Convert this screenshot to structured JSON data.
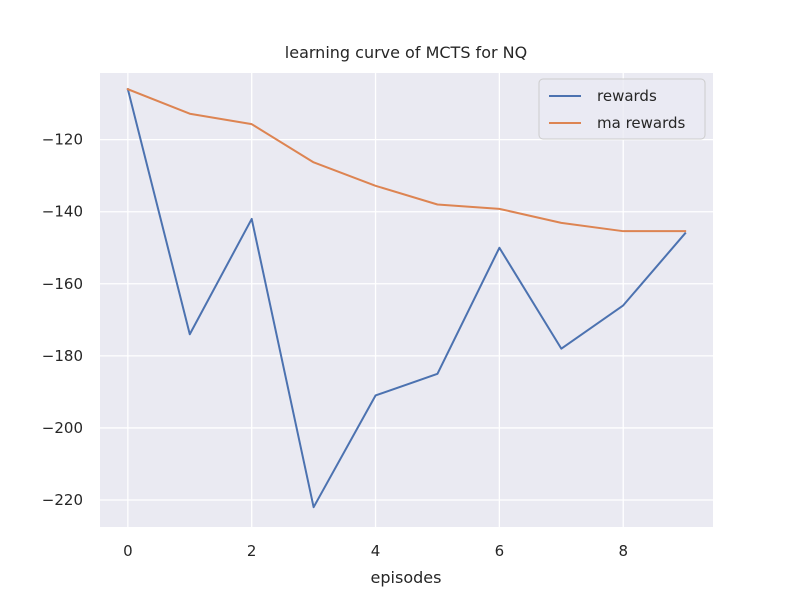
{
  "chart_data": {
    "type": "line",
    "title": "learning curve of MCTS for NQ",
    "xlabel": "episodes",
    "ylabel": "",
    "x": [
      0,
      1,
      2,
      3,
      4,
      5,
      6,
      7,
      8,
      9
    ],
    "xlim": [
      -0.45,
      9.45
    ],
    "ylim": [
      -227.5,
      -101.5
    ],
    "xticks": [
      0,
      2,
      4,
      6,
      8
    ],
    "yticks": [
      -120,
      -140,
      -160,
      -180,
      -200,
      -220
    ],
    "ytick_labels": [
      "−120",
      "−140",
      "−160",
      "−180",
      "−200",
      "−220"
    ],
    "grid": true,
    "legend_position": "upper right",
    "series": [
      {
        "name": "rewards",
        "color": "#4c72b0",
        "values": [
          -106,
          -174,
          -142,
          -222,
          -191,
          -185,
          -150,
          -178,
          -166,
          -146
        ]
      },
      {
        "name": "ma rewards",
        "color": "#dd8452",
        "values": [
          -106,
          -112.8,
          -115.7,
          -126.3,
          -132.8,
          -138.0,
          -139.2,
          -143.1,
          -145.4,
          -145.4
        ]
      }
    ]
  }
}
